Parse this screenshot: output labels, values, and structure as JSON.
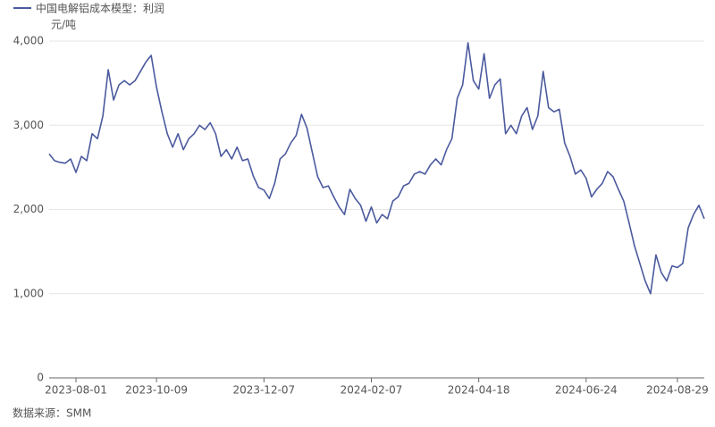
{
  "chart_data": {
    "type": "line",
    "y_unit": "元/吨",
    "source": "数据来源：SMM",
    "categories": [
      null,
      null,
      null,
      null,
      null,
      "2023-08-01",
      null,
      null,
      null,
      null,
      null,
      null,
      null,
      null,
      null,
      null,
      null,
      null,
      null,
      null,
      "2023-10-09",
      null,
      null,
      null,
      null,
      null,
      null,
      null,
      null,
      null,
      null,
      null,
      null,
      null,
      null,
      null,
      null,
      null,
      null,
      null,
      "2023-12-07",
      null,
      null,
      null,
      null,
      null,
      null,
      null,
      null,
      null,
      null,
      null,
      null,
      null,
      null,
      null,
      null,
      null,
      null,
      null,
      "2024-02-07",
      null,
      null,
      null,
      null,
      null,
      null,
      null,
      null,
      null,
      null,
      null,
      null,
      null,
      null,
      null,
      null,
      null,
      null,
      null,
      "2024-04-18",
      null,
      null,
      null,
      null,
      null,
      null,
      null,
      null,
      null,
      null,
      null,
      null,
      null,
      null,
      null,
      null,
      null,
      null,
      null,
      "2024-06-24",
      null,
      null,
      null,
      null,
      null,
      null,
      null,
      null,
      null,
      null,
      null,
      null,
      null,
      null,
      null,
      null,
      "2024-08-29",
      null,
      null,
      null,
      null,
      null
    ],
    "series": [
      {
        "name": "中国电解铝成本模型：利润",
        "color": "#4b5a9e",
        "values": [
          2660,
          2580,
          2560,
          2550,
          2600,
          2440,
          2630,
          2580,
          2900,
          2840,
          3110,
          3660,
          3300,
          3480,
          3530,
          3480,
          3530,
          3640,
          3750,
          3830,
          3450,
          3160,
          2900,
          2740,
          2900,
          2710,
          2840,
          2900,
          3000,
          2950,
          3030,
          2900,
          2630,
          2710,
          2600,
          2740,
          2580,
          2600,
          2400,
          2260,
          2230,
          2130,
          2310,
          2600,
          2660,
          2790,
          2880,
          3130,
          2970,
          2680,
          2390,
          2260,
          2280,
          2150,
          2030,
          1940,
          2240,
          2130,
          2050,
          1860,
          2030,
          1840,
          1940,
          1890,
          2100,
          2150,
          2280,
          2310,
          2420,
          2450,
          2420,
          2530,
          2600,
          2530,
          2710,
          2840,
          3320,
          3480,
          3980,
          3530,
          3430,
          3850,
          3320,
          3480,
          3550,
          2900,
          3000,
          2900,
          3110,
          3210,
          2950,
          3110,
          3640,
          3210,
          3160,
          3190,
          2790,
          2630,
          2420,
          2470,
          2370,
          2150,
          2240,
          2310,
          2450,
          2390,
          2240,
          2100,
          1840,
          1570,
          1360,
          1150,
          1000,
          1460,
          1250,
          1150,
          1330,
          1310,
          1360,
          1780,
          1940,
          2050,
          1890
        ]
      }
    ],
    "ylim": [
      0,
      4000
    ],
    "yticks": [
      0,
      {
        "value": 1000,
        "label": "1,000"
      },
      {
        "value": 2000,
        "label": "2,000"
      },
      {
        "value": 3000,
        "label": "3,000"
      },
      {
        "value": 4000,
        "label": "4,000"
      }
    ],
    "grid": true
  }
}
